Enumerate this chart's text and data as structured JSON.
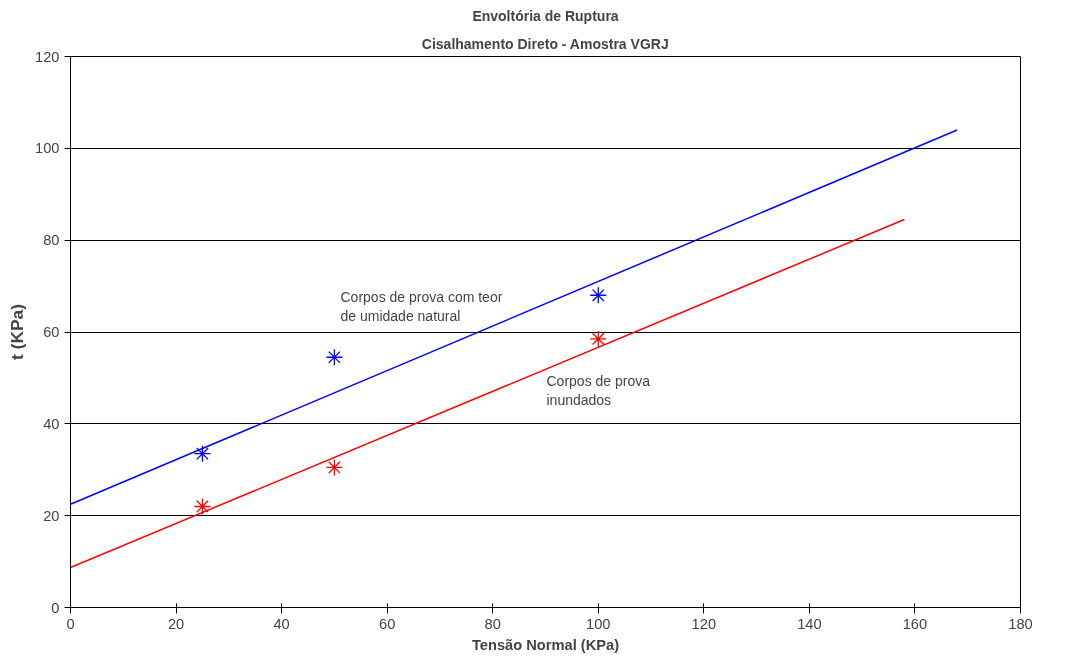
{
  "chart_data": {
    "type": "scatter",
    "title": "Envoltória de Ruptura",
    "subtitle": "Cisalhamento Direto - Amostra VGRJ",
    "xlabel": "Tensão Normal (KPa)",
    "ylabel": "t (KPa)",
    "xlim": [
      0,
      180
    ],
    "ylim": [
      0,
      120
    ],
    "xticks": [
      0,
      20,
      40,
      60,
      80,
      100,
      120,
      140,
      160,
      180
    ],
    "yticks": [
      0,
      20,
      40,
      60,
      80,
      100,
      120
    ],
    "grid": "y",
    "marker": "cross",
    "series": [
      {
        "color": "#0000ff",
        "x": [
          25,
          50,
          100
        ],
        "values": [
          33.5,
          54.5,
          68
        ]
      },
      {
        "color": "#ff0000",
        "x": [
          25,
          50,
          100
        ],
        "values": [
          22,
          30.5,
          58.5
        ]
      },
      {
        "type": "line",
        "color": "#0000ff",
        "x": [
          0,
          168
        ],
        "values": [
          22.5,
          104
        ],
        "marker": "none"
      },
      {
        "type": "line",
        "color": "#ff0000",
        "x": [
          0,
          158
        ],
        "values": [
          8.7,
          84.5
        ],
        "marker": "none"
      }
    ],
    "annotations": [
      "Corpos de prova com teor\nde umidade natural",
      "Corpos de prova\ninundados"
    ]
  }
}
